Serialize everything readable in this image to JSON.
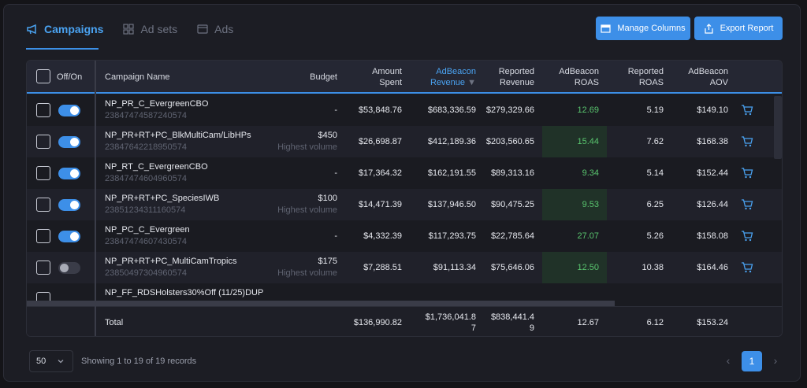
{
  "tabs": [
    {
      "label": "Campaigns",
      "icon": "megaphone-icon",
      "active": true
    },
    {
      "label": "Ad sets",
      "icon": "grid-icon",
      "active": false
    },
    {
      "label": "Ads",
      "icon": "window-icon",
      "active": false
    }
  ],
  "buttons": {
    "manage_columns": "Manage Columns",
    "export_report": "Export Report"
  },
  "columns": {
    "offon": "Off/On",
    "campaign_name": "Campaign Name",
    "budget": "Budget",
    "amount_spent": [
      "Amount",
      "Spent"
    ],
    "adbeacon_revenue": [
      "AdBeacon",
      "Revenue"
    ],
    "reported_revenue": [
      "Reported",
      "Revenue"
    ],
    "adbeacon_roas": [
      "AdBeacon",
      "ROAS"
    ],
    "reported_roas": [
      "Reported",
      "ROAS"
    ],
    "adbeacon_aov": [
      "AdBeacon",
      "AOV"
    ]
  },
  "rows": [
    {
      "name": "NP_PR_C_EvergreenCBO",
      "id": "23847474587240574",
      "budget": "-",
      "budget_sub": "",
      "on": true,
      "spent": "$53,848.76",
      "ab_rev": "$683,336.59",
      "rep_rev": "$279,329.66",
      "ab_roas": "12.69",
      "ab_roas_hi": false,
      "rep_roas": "5.19",
      "aov": "$149.10"
    },
    {
      "name": "NP_PR+RT+PC_BlkMultiCam/LibHPs",
      "id": "23847642218950574",
      "budget": "$450",
      "budget_sub": "Highest volume",
      "on": true,
      "spent": "$26,698.87",
      "ab_rev": "$412,189.36",
      "rep_rev": "$203,560.65",
      "ab_roas": "15.44",
      "ab_roas_hi": true,
      "rep_roas": "7.62",
      "aov": "$168.38"
    },
    {
      "name": "NP_RT_C_EvergreenCBO",
      "id": "23847474604960574",
      "budget": "-",
      "budget_sub": "",
      "on": true,
      "spent": "$17,364.32",
      "ab_rev": "$162,191.55",
      "rep_rev": "$89,313.16",
      "ab_roas": "9.34",
      "ab_roas_hi": false,
      "rep_roas": "5.14",
      "aov": "$152.44"
    },
    {
      "name": "NP_PR+RT+PC_SpeciesIWB",
      "id": "23851234311160574",
      "budget": "$100",
      "budget_sub": "Highest volume",
      "on": true,
      "spent": "$14,471.39",
      "ab_rev": "$137,946.50",
      "rep_rev": "$90,475.25",
      "ab_roas": "9.53",
      "ab_roas_hi": true,
      "rep_roas": "6.25",
      "aov": "$126.44"
    },
    {
      "name": "NP_PC_C_Evergreen",
      "id": "23847474607430574",
      "budget": "-",
      "budget_sub": "",
      "on": true,
      "spent": "$4,332.39",
      "ab_rev": "$117,293.75",
      "rep_rev": "$22,785.64",
      "ab_roas": "27.07",
      "ab_roas_hi": false,
      "rep_roas": "5.26",
      "aov": "$158.08"
    },
    {
      "name": "NP_PR+RT+PC_MultiCamTropics",
      "id": "23850497304960574",
      "budget": "$175",
      "budget_sub": "Highest volume",
      "on": false,
      "spent": "$7,288.51",
      "ab_rev": "$91,113.34",
      "rep_rev": "$75,646.06",
      "ab_roas": "12.50",
      "ab_roas_hi": true,
      "rep_roas": "10.38",
      "aov": "$164.46"
    },
    {
      "name": "NP_FF_RDSHolsters30%Off (11/25)DUP",
      "id": "",
      "budget": "",
      "budget_sub": "",
      "on": false,
      "spent": "",
      "ab_rev": "",
      "rep_rev": "",
      "ab_roas": "",
      "ab_roas_hi": false,
      "rep_roas": "",
      "aov": ""
    }
  ],
  "totals": {
    "label": "Total",
    "spent": "$136,990.82",
    "ab_rev": [
      "$1,736,041.8",
      "7"
    ],
    "rep_rev": [
      "$838,441.4",
      "9"
    ],
    "ab_roas": "12.67",
    "rep_roas": "6.12",
    "aov": "$153.24"
  },
  "footer": {
    "per_page": "50",
    "showing": "Showing 1 to 19 of 19 records",
    "current_page": "1"
  },
  "colors": {
    "accent": "#3d8fe8",
    "roas_green": "#59c46e",
    "roas_highlight_bg": "#203228"
  }
}
